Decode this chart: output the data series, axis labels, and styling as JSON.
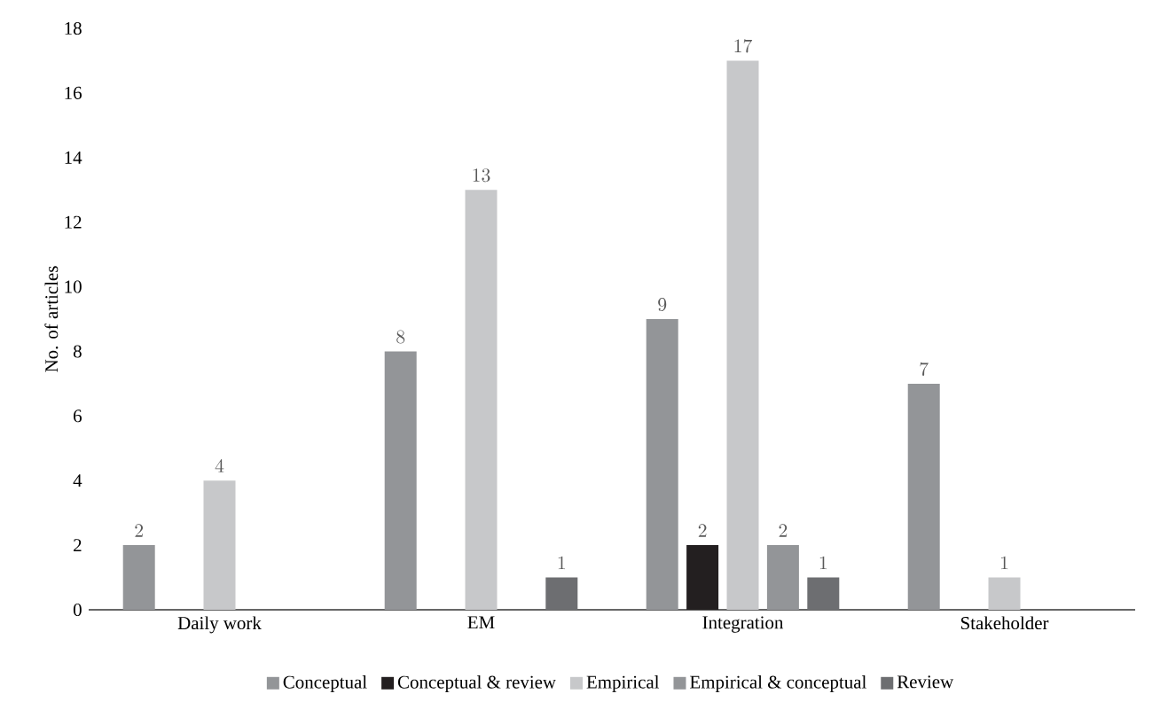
{
  "chart_data": {
    "type": "bar",
    "ylabel": "No. of articles",
    "categories": [
      "Daily work",
      "EM",
      "Integration",
      "Stakeholder"
    ],
    "series": [
      {
        "name": "Conceptual",
        "color": "#939598",
        "values": [
          2,
          8,
          9,
          7
        ]
      },
      {
        "name": "Conceptual & review",
        "color": "#231f20",
        "values": [
          null,
          null,
          2,
          null
        ]
      },
      {
        "name": "Empirical",
        "color": "#c7c8ca",
        "values": [
          4,
          13,
          17,
          1
        ]
      },
      {
        "name": "Empirical & conceptual",
        "color": "#939598",
        "values": [
          null,
          null,
          2,
          null
        ]
      },
      {
        "name": "Review",
        "color": "#6d6e71",
        "values": [
          null,
          1,
          1,
          null
        ]
      }
    ],
    "ylim": [
      0,
      18
    ],
    "yticks": [
      0,
      2,
      4,
      6,
      8,
      10,
      12,
      14,
      16,
      18
    ],
    "data_labels": true,
    "legend": "bottom",
    "grid": false
  }
}
